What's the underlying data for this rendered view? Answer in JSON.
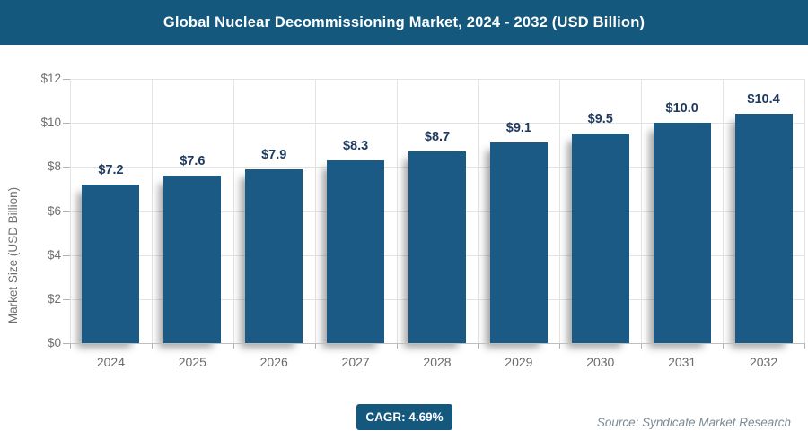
{
  "header": {
    "title": "Global Nuclear Decommissioning Market, 2024 - 2032 (USD Billion)"
  },
  "chart_data": {
    "type": "bar",
    "title": "Global Nuclear Decommissioning Market, 2024 - 2032 (USD Billion)",
    "categories": [
      "2024",
      "2025",
      "2026",
      "2027",
      "2028",
      "2029",
      "2030",
      "2031",
      "2032"
    ],
    "values": [
      7.2,
      7.6,
      7.9,
      8.3,
      8.7,
      9.1,
      9.5,
      10.0,
      10.4
    ],
    "data_labels": [
      "$7.2",
      "$7.6",
      "$7.9",
      "$8.3",
      "$8.7",
      "$9.1",
      "$9.5",
      "$10.0",
      "$10.4"
    ],
    "xlabel": "",
    "ylabel": "Market Size (USD Billion)",
    "ylim": [
      0,
      12
    ],
    "ytick_step": 2,
    "ytick_labels": [
      "$0",
      "$2",
      "$4",
      "$6",
      "$8",
      "$10",
      "$12"
    ],
    "grid": true,
    "legend": "none"
  },
  "footer": {
    "cagr_label": "CAGR: 4.69%",
    "source": "Source: Syndicate Market Research"
  },
  "colors": {
    "header_background": "#15587E",
    "bar_fill": "#1A5A85",
    "badge_background": "#15587E",
    "value_label": "#1E3A5F",
    "axis_text": "#6E6E6E",
    "gridline": "#E3E3E3"
  }
}
